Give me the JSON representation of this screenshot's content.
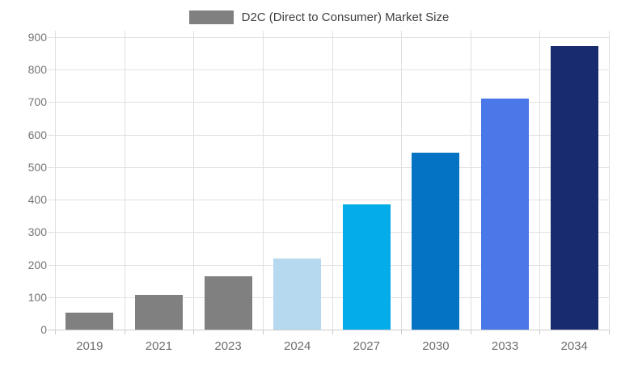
{
  "legend": {
    "label": "D2C (Direct to Consumer) Market Size",
    "swatch_color": "#808080"
  },
  "chart_data": {
    "type": "bar",
    "title": "D2C (Direct to Consumer) Market Size",
    "categories": [
      "2019",
      "2021",
      "2023",
      "2024",
      "2027",
      "2030",
      "2033",
      "2034"
    ],
    "values": [
      52,
      108,
      165,
      220,
      385,
      545,
      712,
      873
    ],
    "bar_colors": [
      "#808080",
      "#808080",
      "#808080",
      "#B7D9F0",
      "#04ACE8",
      "#0473C4",
      "#4A78E8",
      "#172B6E"
    ],
    "xlabel": "",
    "ylabel": "",
    "ylim": [
      0,
      900
    ],
    "ytick_step": 100,
    "ytick_labels": [
      "0",
      "100",
      "200",
      "300",
      "400",
      "500",
      "600",
      "700",
      "800",
      "900"
    ],
    "grid": true,
    "legend_position": "top-center",
    "colors": {
      "grid_line": "#e0e0e0",
      "axis_line": "#cccccc",
      "axis_text": "#757575",
      "title_text": "#404040",
      "background": "#ffffff"
    }
  }
}
